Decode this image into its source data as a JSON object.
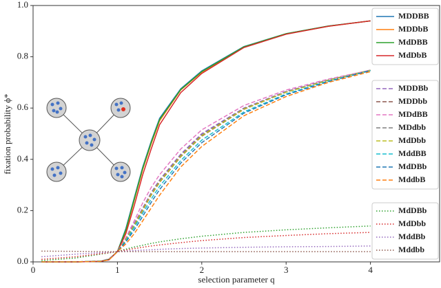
{
  "chart_data": {
    "type": "line",
    "xlabel": "selection parameter q",
    "ylabel": "fixation probability ϕ*",
    "xlim": [
      0,
      4.82
    ],
    "ylim": [
      0,
      1.0
    ],
    "xticks": [
      0,
      1,
      2,
      3,
      4
    ],
    "yticks": [
      {
        "value": 0,
        "label": "0.0"
      },
      0.2,
      0.4,
      0.6,
      0.8,
      {
        "value": 1.0,
        "label": "1.0"
      }
    ],
    "x": [
      0.1,
      0.5,
      0.8,
      0.9,
      1,
      1.1,
      1.2,
      1.3,
      1.4,
      1.5,
      1.75,
      2,
      2.5,
      3,
      3.5,
      4
    ],
    "series": [
      {
        "name": "MDDBB",
        "color": "#1f77b4",
        "style": "solid",
        "values": [
          0,
          0,
          0.002,
          0.01,
          0.04,
          0.13,
          0.25,
          0.37,
          0.47,
          0.56,
          0.675,
          0.745,
          0.84,
          0.89,
          0.92,
          0.94
        ]
      },
      {
        "name": "MDDbB",
        "color": "#ff7f0e",
        "style": "solid",
        "values": [
          0,
          0,
          0.002,
          0.01,
          0.04,
          0.12,
          0.24,
          0.36,
          0.46,
          0.55,
          0.67,
          0.74,
          0.838,
          0.889,
          0.919,
          0.94
        ]
      },
      {
        "name": "MdDBB",
        "color": "#2ca02c",
        "style": "solid",
        "values": [
          0,
          0,
          0.002,
          0.01,
          0.04,
          0.125,
          0.245,
          0.365,
          0.465,
          0.555,
          0.672,
          0.742,
          0.839,
          0.89,
          0.92,
          0.94
        ]
      },
      {
        "name": "MdDbB",
        "color": "#d62728",
        "style": "solid",
        "values": [
          0,
          0,
          0.002,
          0.008,
          0.04,
          0.11,
          0.22,
          0.34,
          0.44,
          0.535,
          0.66,
          0.735,
          0.836,
          0.888,
          0.919,
          0.94
        ]
      },
      {
        "name": "MDDBb",
        "color": "#9467bd",
        "style": "dashed",
        "values": [
          0,
          0,
          0.003,
          0.01,
          0.04,
          0.09,
          0.15,
          0.21,
          0.27,
          0.32,
          0.42,
          0.5,
          0.6,
          0.665,
          0.71,
          0.748
        ]
      },
      {
        "name": "MDDbb",
        "color": "#8c564b",
        "style": "dashed",
        "values": [
          0,
          0,
          0.003,
          0.01,
          0.04,
          0.085,
          0.14,
          0.2,
          0.26,
          0.31,
          0.41,
          0.49,
          0.595,
          0.662,
          0.708,
          0.747
        ]
      },
      {
        "name": "MDdBB",
        "color": "#e377c2",
        "style": "dashed",
        "values": [
          0,
          0,
          0.003,
          0.012,
          0.04,
          0.095,
          0.16,
          0.23,
          0.29,
          0.34,
          0.44,
          0.515,
          0.61,
          0.67,
          0.713,
          0.748
        ]
      },
      {
        "name": "MDdbb",
        "color": "#7f7f7f",
        "style": "dashed",
        "values": [
          0,
          0,
          0.003,
          0.01,
          0.04,
          0.088,
          0.145,
          0.205,
          0.265,
          0.315,
          0.415,
          0.495,
          0.598,
          0.663,
          0.709,
          0.747
        ]
      },
      {
        "name": "MdDbb",
        "color": "#bcbd22",
        "style": "dashed",
        "values": [
          0,
          0,
          0.003,
          0.01,
          0.04,
          0.087,
          0.143,
          0.203,
          0.262,
          0.312,
          0.412,
          0.492,
          0.596,
          0.662,
          0.708,
          0.747
        ]
      },
      {
        "name": "MddBB",
        "color": "#17becf",
        "style": "dashed",
        "values": [
          0,
          0,
          0.003,
          0.01,
          0.04,
          0.082,
          0.135,
          0.19,
          0.245,
          0.295,
          0.395,
          0.475,
          0.585,
          0.655,
          0.705,
          0.746
        ]
      },
      {
        "name": "MdDBb",
        "color": "#1f77b4",
        "style": "dashed",
        "values": [
          0,
          0,
          0.002,
          0.009,
          0.04,
          0.078,
          0.125,
          0.178,
          0.232,
          0.282,
          0.385,
          0.465,
          0.58,
          0.652,
          0.703,
          0.746
        ]
      },
      {
        "name": "MddbB",
        "color": "#ff7f0e",
        "style": "dashed",
        "values": [
          0,
          0,
          0.002,
          0.008,
          0.04,
          0.07,
          0.11,
          0.16,
          0.21,
          0.26,
          0.37,
          0.45,
          0.57,
          0.645,
          0.7,
          0.742
        ]
      },
      {
        "name": "MdDBb",
        "color": "#2ca02c",
        "style": "dotted",
        "values": [
          0.005,
          0.015,
          0.03,
          0.035,
          0.04,
          0.05,
          0.058,
          0.065,
          0.072,
          0.078,
          0.09,
          0.1,
          0.115,
          0.125,
          0.133,
          0.14
        ]
      },
      {
        "name": "MdDbb",
        "color": "#d62728",
        "style": "dotted",
        "values": [
          0.01,
          0.02,
          0.032,
          0.036,
          0.04,
          0.046,
          0.052,
          0.057,
          0.062,
          0.066,
          0.075,
          0.083,
          0.095,
          0.103,
          0.11,
          0.115
        ]
      },
      {
        "name": "MddBb",
        "color": "#9467bd",
        "style": "dotted",
        "values": [
          0.02,
          0.03,
          0.036,
          0.038,
          0.04,
          0.042,
          0.044,
          0.046,
          0.047,
          0.049,
          0.052,
          0.054,
          0.057,
          0.059,
          0.06,
          0.062
        ]
      },
      {
        "name": "Mddbb",
        "color": "#8c564b",
        "style": "dotted",
        "values": [
          0.042,
          0.041,
          0.04,
          0.04,
          0.04,
          0.04,
          0.04,
          0.04,
          0.04,
          0.04,
          0.04,
          0.04,
          0.04,
          0.04,
          0.04,
          0.04
        ]
      }
    ]
  }
}
